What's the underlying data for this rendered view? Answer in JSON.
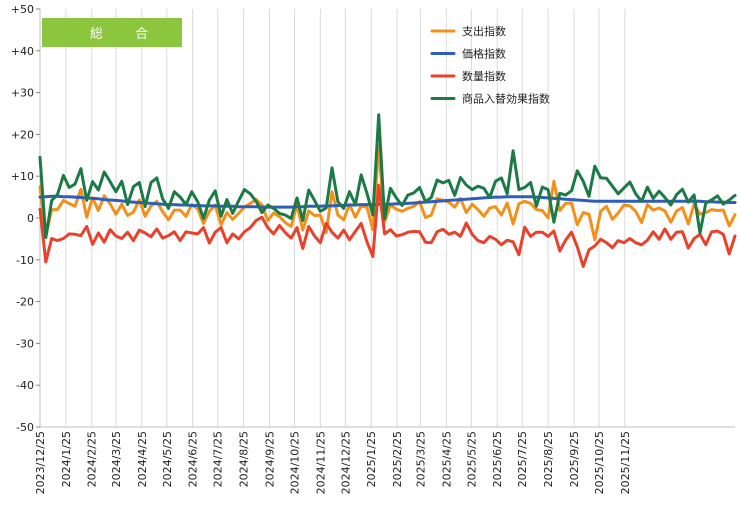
{
  "badge": {
    "label": "総 合",
    "color": "#8cc63f"
  },
  "chart_data": {
    "type": "line",
    "ylim": [
      -50,
      50
    ],
    "yticks": [
      50,
      40,
      30,
      20,
      10,
      0,
      -10,
      -20,
      -30,
      -40,
      -50
    ],
    "ytick_labels": [
      "+50",
      "+40",
      "+30",
      "+20",
      "+10",
      "0",
      "-10",
      "-20",
      "-30",
      "-40",
      "-50"
    ],
    "x_tick_labels": [
      "2023/12/25",
      "2024/1/25",
      "2024/2/25",
      "2024/3/25",
      "2024/4/25",
      "2024/5/25",
      "2024/6/25",
      "2024/7/25",
      "2024/8/25",
      "2024/9/25",
      "2024/10/25",
      "2024/11/25",
      "2024/12/25",
      "2025/1/25",
      "2025/2/25",
      "2025/3/25",
      "2025/4/25",
      "2025/5/25",
      "2025/6/25",
      "2025/7/25",
      "2025/8/25",
      "2025/9/25",
      "2025/10/25",
      "2025/11/25"
    ],
    "x_tick_index": [
      0,
      4.43,
      8.86,
      13.0,
      17.43,
      21.71,
      26.14,
      30.43,
      34.86,
      39.29,
      43.57,
      48.0,
      52.29,
      56.71,
      61.14,
      65.14,
      69.57,
      73.86,
      78.29,
      82.57,
      87.0,
      91.43,
      95.71,
      100.14
    ],
    "grid": "vertical",
    "legend_position": "top-right",
    "series": [
      {
        "name": "支出指数",
        "color": "#f39019",
        "values": [
          7.5,
          -4.4,
          2.0,
          2.0,
          4.2,
          3.5,
          2.8,
          6.9,
          0.2,
          4.8,
          1.8,
          5.3,
          3.4,
          0.9,
          3.3,
          0.6,
          1.4,
          4.3,
          0.4,
          2.9,
          4.0,
          1.5,
          -0.4,
          1.9,
          1.9,
          0.4,
          3.2,
          2.2,
          -1.3,
          1.6,
          3.1,
          -1.6,
          1.3,
          -0.3,
          1.1,
          2.6,
          3.5,
          4.4,
          3.1,
          -0.6,
          1.2,
          0.3,
          -1.1,
          -2.0,
          3.1,
          -2.9,
          1.7,
          0.6,
          0.7,
          -3.5,
          6.3,
          0.7,
          -0.4,
          3.2,
          0.2,
          2.9,
          2.5,
          -2.8,
          17.1,
          -0.9,
          3.1,
          2.1,
          1.6,
          2.3,
          2.8,
          3.9,
          0.1,
          0.7,
          4.6,
          4.2,
          3.8,
          2.6,
          4.7,
          1.3,
          3.3,
          2.0,
          0.4,
          2.4,
          2.7,
          0.7,
          3.6,
          -1.4,
          3.4,
          4.0,
          3.5,
          2.0,
          1.8,
          0.0,
          8.8,
          1.8,
          3.5,
          3.6,
          -1.6,
          1.3,
          0.9,
          -5.2,
          1.6,
          2.8,
          -0.3,
          1.2,
          3.1,
          2.9,
          1.6,
          -1.1,
          3.2,
          1.9,
          2.4,
          1.7,
          -1.0,
          1.7,
          2.5,
          -1.4,
          3.3,
          0.9,
          1.3,
          2.0,
          1.8,
          1.9,
          -1.9,
          0.8
        ]
      },
      {
        "name": "価格指数",
        "color": "#2e5dbd",
        "values": [
          5.0,
          5.1,
          5.2,
          5.2,
          5.1,
          5.1,
          5.0,
          4.9,
          4.8,
          4.7,
          4.6,
          4.4,
          4.3,
          4.2,
          4.1,
          3.9,
          3.8,
          3.7,
          3.6,
          3.5,
          3.4,
          3.3,
          3.2,
          3.2,
          3.1,
          3.1,
          3.0,
          3.0,
          2.9,
          2.9,
          2.9,
          2.8,
          2.8,
          2.8,
          2.7,
          2.7,
          2.7,
          2.7,
          2.6,
          2.6,
          2.6,
          2.6,
          2.6,
          2.6,
          2.7,
          2.7,
          2.8,
          2.8,
          2.8,
          2.9,
          2.9,
          3.0,
          3.0,
          3.1,
          3.1,
          3.2,
          3.2,
          3.2,
          3.3,
          3.3,
          3.3,
          3.4,
          3.4,
          3.5,
          3.6,
          3.7,
          3.8,
          3.9,
          4.0,
          4.1,
          4.2,
          4.3,
          4.4,
          4.5,
          4.6,
          4.7,
          4.8,
          4.9,
          5.0,
          5.0,
          5.1,
          5.1,
          5.1,
          5.1,
          5.1,
          5.0,
          4.9,
          4.8,
          4.7,
          4.6,
          4.5,
          4.4,
          4.3,
          4.2,
          4.1,
          4.0,
          4.0,
          4.0,
          4.0,
          4.0,
          4.0,
          4.0,
          4.0,
          4.0,
          4.0,
          4.0,
          4.0,
          4.0,
          4.0,
          4.0,
          4.0,
          4.0,
          4.0,
          4.0,
          3.9,
          3.9,
          3.8,
          3.8,
          3.7,
          3.7
        ]
      },
      {
        "name": "数量指数",
        "color": "#e8412c",
        "values": [
          2.1,
          -10.5,
          -4.9,
          -5.4,
          -4.9,
          -3.8,
          -3.9,
          -4.2,
          -2.0,
          -6.3,
          -3.6,
          -5.8,
          -2.8,
          -4.3,
          -4.9,
          -3.4,
          -5.4,
          -2.9,
          -3.6,
          -4.5,
          -2.6,
          -4.8,
          -4.2,
          -3.3,
          -5.4,
          -3.3,
          -3.6,
          -3.8,
          -2.3,
          -6.0,
          -3.4,
          -2.3,
          -5.9,
          -3.8,
          -5.0,
          -3.3,
          -2.3,
          -0.6,
          0.2,
          -2.3,
          -3.8,
          -1.8,
          -3.5,
          -4.8,
          -2.3,
          -7.3,
          -2.0,
          -4.3,
          -5.9,
          -1.3,
          -3.4,
          -4.8,
          -2.9,
          -5.2,
          -3.2,
          -1.3,
          -5.8,
          -9.2,
          7.8,
          -3.8,
          -2.8,
          -4.3,
          -4.0,
          -3.4,
          -3.2,
          -3.3,
          -5.8,
          -5.9,
          -3.3,
          -2.7,
          -3.9,
          -3.4,
          -4.4,
          -1.2,
          -3.9,
          -5.4,
          -5.9,
          -4.4,
          -5.1,
          -6.4,
          -5.3,
          -5.7,
          -8.8,
          -2.2,
          -4.4,
          -3.4,
          -3.4,
          -4.4,
          -3.1,
          -7.9,
          -5.3,
          -3.4,
          -6.9,
          -11.6,
          -7.6,
          -6.7,
          -5.1,
          -5.9,
          -7.1,
          -5.4,
          -5.9,
          -4.9,
          -5.9,
          -6.4,
          -5.3,
          -3.3,
          -5.1,
          -2.6,
          -5.1,
          -3.4,
          -3.3,
          -7.2,
          -4.9,
          -3.9,
          -6.4,
          -3.3,
          -3.1,
          -3.9,
          -8.6,
          -4.3
        ]
      },
      {
        "name": "商品入替効果指数",
        "color": "#1c7a46",
        "values": [
          14.5,
          -4.7,
          4.2,
          5.6,
          10.2,
          7.3,
          8.1,
          11.8,
          4.2,
          8.7,
          6.7,
          11.0,
          8.7,
          6.3,
          8.8,
          3.2,
          7.5,
          8.5,
          2.7,
          8.5,
          9.6,
          4.6,
          2.3,
          6.3,
          5.0,
          3.2,
          6.3,
          3.9,
          -0.1,
          4.3,
          6.5,
          0.4,
          4.4,
          1.1,
          4.1,
          6.8,
          5.8,
          4.0,
          1.3,
          3.1,
          2.3,
          1.1,
          0.7,
          -0.1,
          4.8,
          -0.6,
          6.7,
          4.2,
          1.6,
          2.4,
          12.0,
          3.9,
          2.3,
          6.3,
          3.2,
          10.3,
          5.8,
          0.7,
          24.7,
          -0.2,
          7.1,
          4.8,
          3.0,
          5.5,
          6.0,
          7.3,
          3.9,
          4.9,
          9.1,
          8.4,
          9.0,
          5.4,
          9.7,
          7.9,
          6.8,
          7.6,
          7.1,
          4.9,
          8.8,
          9.6,
          5.8,
          16.1,
          6.8,
          7.3,
          8.5,
          2.8,
          7.4,
          6.8,
          -1.0,
          5.9,
          5.5,
          6.5,
          11.3,
          8.8,
          5.2,
          12.4,
          9.6,
          9.5,
          7.6,
          5.8,
          7.2,
          8.6,
          5.8,
          4.0,
          7.4,
          4.7,
          6.4,
          4.9,
          3.1,
          5.6,
          6.9,
          3.8,
          5.5,
          -3.6,
          3.6,
          4.3,
          5.3,
          3.3,
          4.3,
          5.4
        ]
      }
    ]
  }
}
